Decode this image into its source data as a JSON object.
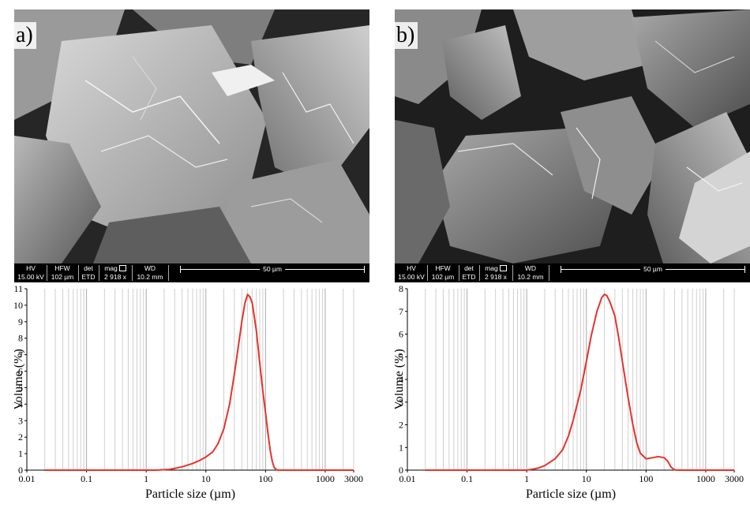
{
  "panels": [
    {
      "id": "a",
      "label": "a)",
      "sem_databar": {
        "hv_label": "HV",
        "hv_value": "15.00 kV",
        "hfw_label": "HFW",
        "hfw_value": "102 µm",
        "det_label": "det",
        "det_value": "ETD",
        "mag_label": "mag",
        "mag_value": "2 918 x",
        "wd_label": "WD",
        "wd_value": "10.2 mm",
        "scale_bar": "50 µm"
      }
    },
    {
      "id": "b",
      "label": "b)",
      "sem_databar": {
        "hv_label": "HV",
        "hv_value": "15.00 kV",
        "hfw_label": "HFW",
        "hfw_value": "102 µm",
        "det_label": "det",
        "det_value": "ETD",
        "mag_label": "mag",
        "mag_value": "2 918 x",
        "wd_label": "WD",
        "wd_value": "10.2 mm",
        "scale_bar": "50 µm"
      }
    }
  ],
  "chart_data": [
    {
      "type": "line",
      "panel": "a",
      "xscale": "log",
      "xlim": [
        0.01,
        3000
      ],
      "ylim": [
        0,
        11
      ],
      "xticks": [
        0.01,
        0.1,
        1,
        10,
        100,
        1000,
        3000
      ],
      "xtick_labels": [
        "0.01",
        "0.1",
        "1",
        "10",
        "100",
        "1000",
        "3000"
      ],
      "yticks": [
        0,
        1,
        2,
        3,
        4,
        5,
        6,
        7,
        8,
        9,
        10,
        11
      ],
      "ytick_labels": [
        "0",
        "1",
        "2",
        "3",
        "4",
        "5",
        "6",
        "7",
        "8",
        "9",
        "10",
        "11"
      ],
      "xlabel": "Particle size (µm)",
      "ylabel": "Volume (%)",
      "grid": "vertical-log",
      "line_color": "#e8322b",
      "series": [
        {
          "x": [
            0.02,
            1.5,
            2.5,
            4,
            6,
            8,
            10,
            13,
            16,
            20,
            25,
            30,
            35,
            40,
            45,
            50,
            55,
            60,
            70,
            80,
            90,
            100,
            110,
            120,
            130,
            140,
            150,
            160,
            170,
            3000
          ],
          "y": [
            0,
            0,
            0.05,
            0.2,
            0.4,
            0.6,
            0.8,
            1.1,
            1.6,
            2.5,
            4.0,
            5.8,
            7.5,
            9.0,
            10.1,
            10.65,
            10.5,
            10.1,
            8.5,
            6.5,
            4.8,
            3.5,
            2.2,
            1.2,
            0.5,
            0.15,
            0.05,
            0,
            0,
            0
          ]
        }
      ]
    },
    {
      "type": "line",
      "panel": "b",
      "xscale": "log",
      "xlim": [
        0.01,
        3000
      ],
      "ylim": [
        0,
        8
      ],
      "xticks": [
        0.01,
        0.1,
        1,
        10,
        100,
        1000,
        3000
      ],
      "xtick_labels": [
        "0.01",
        "0.1",
        "1",
        "10",
        "100",
        "1000",
        "3000"
      ],
      "yticks": [
        0,
        1,
        2,
        3,
        4,
        5,
        6,
        7,
        8
      ],
      "ytick_labels": [
        "0",
        "1",
        "2",
        "3",
        "4",
        "5",
        "6",
        "7",
        "8"
      ],
      "xlabel": "Particle size (µm)",
      "ylabel": "Volume (%)",
      "grid": "vertical-log",
      "line_color": "#e8322b",
      "series": [
        {
          "x": [
            0.02,
            1.0,
            1.3,
            1.6,
            2,
            3,
            4,
            5,
            6,
            8,
            10,
            12,
            15,
            18,
            20,
            22,
            25,
            30,
            35,
            40,
            50,
            60,
            70,
            80,
            100,
            130,
            160,
            200,
            230,
            260,
            290,
            320,
            3000
          ],
          "y": [
            0,
            0,
            0.05,
            0.1,
            0.2,
            0.5,
            0.9,
            1.5,
            2.2,
            3.5,
            4.8,
            5.9,
            7.0,
            7.6,
            7.75,
            7.7,
            7.4,
            6.8,
            5.8,
            4.8,
            3.2,
            2.0,
            1.2,
            0.75,
            0.5,
            0.55,
            0.6,
            0.55,
            0.4,
            0.15,
            0.03,
            0,
            0
          ]
        }
      ]
    }
  ]
}
